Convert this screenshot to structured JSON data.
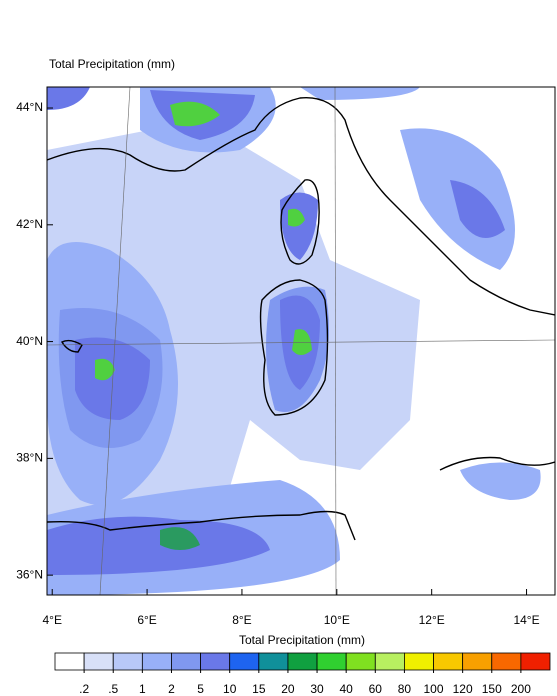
{
  "title": "Total Precipitation   (mm)",
  "map": {
    "lonlim": [
      3.89,
      14.6
    ],
    "latlim": [
      35.66,
      44.36
    ],
    "lon_ticks": [
      {
        "value": 4,
        "label": "4°E"
      },
      {
        "value": 6,
        "label": "6°E"
      },
      {
        "value": 8,
        "label": "8°E"
      },
      {
        "value": 10,
        "label": "10°E"
      },
      {
        "value": 12,
        "label": "12°E"
      },
      {
        "value": 14,
        "label": "14°E"
      }
    ],
    "lat_ticks": [
      {
        "value": 44,
        "label": "44°N"
      },
      {
        "value": 42,
        "label": "42°N"
      },
      {
        "value": 40,
        "label": "40°N"
      },
      {
        "value": 38,
        "label": "38°N"
      },
      {
        "value": 36,
        "label": "36°N"
      }
    ]
  },
  "colorbar": {
    "title": "Total Precipitation  (mm)",
    "levels": [
      {
        "value": 0.2,
        "label": ".2"
      },
      {
        "value": 0.5,
        "label": ".5"
      },
      1,
      2,
      5,
      10,
      15,
      20,
      30,
      40,
      60,
      80,
      100,
      120,
      150,
      200
    ],
    "colors": [
      "#ffffff",
      "#d8e0f8",
      "#b8c8f8",
      "#98b0f8",
      "#8098f0",
      "#6a78e8",
      "#1e64f0",
      "#10909a",
      "#10a040",
      "#30d030",
      "#80e020",
      "#b8f060",
      "#f0f000",
      "#f8c800",
      "#f8a000",
      "#f86800",
      "#f02000"
    ]
  }
}
